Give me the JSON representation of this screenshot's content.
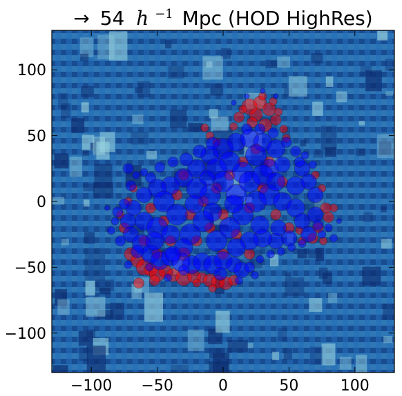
{
  "chart_data": {
    "type": "scatter",
    "title": {
      "arrow": "→",
      "number": "54",
      "h_base": "h",
      "h_exp": "−1",
      "rest": "Mpc (HOD HighRes)"
    },
    "xlabel": "",
    "ylabel": "",
    "xlim": [
      -130,
      130
    ],
    "ylim": [
      -130,
      130
    ],
    "xticks": [
      -100,
      -50,
      0,
      50,
      100
    ],
    "yticks": [
      -100,
      -50,
      0,
      50,
      100
    ],
    "xtick_labels": [
      "−100",
      "−50",
      "0",
      "50",
      "100"
    ],
    "ytick_labels": [
      "−100",
      "−50",
      "0",
      "50",
      "100"
    ],
    "grid": false,
    "legend": "none",
    "background": "blue density field (heatmap)",
    "colors": {
      "density_low": "#0d2b6e",
      "density_mid": "#2f7fc1",
      "density_high": "#9ad3de",
      "series_red": "#ff0000",
      "series_blue": "#0000ff"
    },
    "series": [
      {
        "color": "#ff0000",
        "points": [
          [
            20,
            72,
            6
          ],
          [
            28,
            75,
            5
          ],
          [
            35,
            70,
            5
          ],
          [
            25,
            66,
            5
          ],
          [
            12,
            64,
            4
          ],
          [
            40,
            62,
            4
          ],
          [
            32,
            58,
            5
          ],
          [
            22,
            60,
            4
          ],
          [
            38,
            76,
            3
          ],
          [
            15,
            70,
            3
          ],
          [
            30,
            80,
            3
          ],
          [
            42,
            68,
            3
          ],
          [
            8,
            57,
            3
          ],
          [
            -10,
            50,
            3
          ],
          [
            -14,
            56,
            3
          ],
          [
            -5,
            45,
            3
          ],
          [
            46,
            55,
            3
          ],
          [
            48,
            48,
            3
          ],
          [
            -70,
            -40,
            5
          ],
          [
            -65,
            -45,
            5
          ],
          [
            -60,
            -50,
            6
          ],
          [
            -55,
            -52,
            5
          ],
          [
            -50,
            -55,
            6
          ],
          [
            -44,
            -53,
            5
          ],
          [
            -38,
            -56,
            5
          ],
          [
            -30,
            -58,
            6
          ],
          [
            -22,
            -57,
            5
          ],
          [
            -16,
            -58,
            4
          ],
          [
            -10,
            -60,
            5
          ],
          [
            -4,
            -61,
            5
          ],
          [
            2,
            -62,
            5
          ],
          [
            8,
            -60,
            4
          ],
          [
            -64,
            -62,
            4
          ],
          [
            -52,
            -60,
            4
          ],
          [
            -20,
            -62,
            3
          ],
          [
            -8,
            -66,
            3
          ],
          [
            75,
            10,
            3
          ],
          [
            78,
            -5,
            4
          ],
          [
            80,
            -12,
            4
          ],
          [
            72,
            -20,
            4
          ],
          [
            68,
            -28,
            4
          ],
          [
            60,
            -30,
            3
          ],
          [
            76,
            -30,
            3
          ],
          [
            84,
            -5,
            3
          ],
          [
            70,
            20,
            3
          ],
          [
            58,
            -22,
            3
          ],
          [
            -75,
            -20,
            4
          ],
          [
            -78,
            -10,
            3
          ],
          [
            -72,
            0,
            3
          ],
          [
            -68,
            10,
            3
          ],
          [
            -60,
            -30,
            4
          ],
          [
            -50,
            -40,
            4
          ],
          [
            -40,
            -30,
            4
          ],
          [
            -30,
            -40,
            5
          ],
          [
            -20,
            -30,
            4
          ],
          [
            -10,
            -20,
            4
          ],
          [
            0,
            -10,
            4
          ],
          [
            10,
            -25,
            4
          ],
          [
            20,
            -5,
            4
          ],
          [
            30,
            10,
            4
          ],
          [
            40,
            -10,
            4
          ],
          [
            50,
            -20,
            4
          ],
          [
            45,
            15,
            4
          ],
          [
            35,
            30,
            4
          ],
          [
            25,
            40,
            4
          ],
          [
            15,
            30,
            4
          ],
          [
            5,
            20,
            4
          ],
          [
            -5,
            10,
            4
          ],
          [
            -15,
            0,
            4
          ],
          [
            -25,
            -10,
            4
          ],
          [
            -35,
            5,
            4
          ],
          [
            -45,
            -15,
            4
          ],
          [
            -55,
            -5,
            4
          ],
          [
            0,
            -40,
            4
          ],
          [
            20,
            -40,
            4
          ],
          [
            -30,
            20,
            4
          ]
        ]
      },
      {
        "color": "#0000ff",
        "points": [
          [
            0,
            40,
            8
          ],
          [
            10,
            45,
            7
          ],
          [
            20,
            48,
            7
          ],
          [
            30,
            45,
            7
          ],
          [
            -10,
            35,
            7
          ],
          [
            40,
            40,
            7
          ],
          [
            25,
            35,
            8
          ],
          [
            5,
            30,
            8
          ],
          [
            -5,
            25,
            8
          ],
          [
            15,
            22,
            8
          ],
          [
            35,
            25,
            7
          ],
          [
            45,
            28,
            6
          ],
          [
            -20,
            25,
            7
          ],
          [
            -30,
            18,
            7
          ],
          [
            -40,
            12,
            7
          ],
          [
            -50,
            10,
            7
          ],
          [
            -60,
            5,
            6
          ],
          [
            -68,
            -5,
            6
          ],
          [
            -72,
            -15,
            6
          ],
          [
            -70,
            -25,
            6
          ],
          [
            -62,
            -32,
            7
          ],
          [
            -55,
            -40,
            7
          ],
          [
            -48,
            -45,
            7
          ],
          [
            -40,
            -42,
            7
          ],
          [
            -32,
            -46,
            7
          ],
          [
            -24,
            -48,
            7
          ],
          [
            -16,
            -46,
            7
          ],
          [
            -8,
            -48,
            7
          ],
          [
            0,
            -45,
            7
          ],
          [
            8,
            -48,
            6
          ],
          [
            14,
            -52,
            6
          ],
          [
            -2,
            -55,
            5
          ],
          [
            -60,
            -15,
            7
          ],
          [
            -50,
            -20,
            8
          ],
          [
            -45,
            0,
            8
          ],
          [
            -35,
            -10,
            8
          ],
          [
            -25,
            -25,
            8
          ],
          [
            -15,
            -15,
            8
          ],
          [
            -5,
            -30,
            8
          ],
          [
            5,
            -20,
            8
          ],
          [
            15,
            -10,
            8
          ],
          [
            25,
            0,
            8
          ],
          [
            35,
            5,
            8
          ],
          [
            45,
            0,
            7
          ],
          [
            55,
            -5,
            7
          ],
          [
            60,
            -15,
            6
          ],
          [
            65,
            -25,
            6
          ],
          [
            50,
            -28,
            6
          ],
          [
            40,
            -30,
            6
          ],
          [
            30,
            -28,
            7
          ],
          [
            20,
            -30,
            7
          ],
          [
            10,
            -35,
            7
          ],
          [
            -10,
            5,
            8
          ],
          [
            -20,
            10,
            8
          ],
          [
            0,
            15,
            8
          ],
          [
            10,
            5,
            8
          ],
          [
            20,
            15,
            8
          ],
          [
            30,
            20,
            8
          ],
          [
            40,
            15,
            7
          ],
          [
            55,
            12,
            7
          ],
          [
            60,
            25,
            6
          ],
          [
            65,
            15,
            6
          ],
          [
            70,
            5,
            6
          ],
          [
            70,
            -10,
            6
          ],
          [
            -30,
            -35,
            7
          ],
          [
            -40,
            -25,
            7
          ],
          [
            -52,
            -30,
            7
          ],
          [
            -65,
            -38,
            5
          ],
          [
            -75,
            -2,
            4
          ],
          [
            -80,
            -8,
            4
          ],
          [
            -82,
            -15,
            3
          ],
          [
            -88,
            -5,
            2
          ],
          [
            -85,
            -22,
            3
          ],
          [
            -78,
            -30,
            4
          ],
          [
            -70,
            12,
            4
          ],
          [
            -66,
            20,
            3
          ],
          [
            -72,
            25,
            4
          ],
          [
            -60,
            22,
            3
          ],
          [
            -55,
            18,
            4
          ],
          [
            -48,
            26,
            4
          ],
          [
            -38,
            30,
            4
          ],
          [
            -28,
            32,
            5
          ],
          [
            -18,
            38,
            5
          ],
          [
            -8,
            44,
            5
          ],
          [
            18,
            55,
            4
          ],
          [
            28,
            55,
            4
          ],
          [
            38,
            52,
            4
          ],
          [
            48,
            45,
            4
          ],
          [
            55,
            38,
            4
          ],
          [
            58,
            30,
            4
          ],
          [
            62,
            35,
            3
          ],
          [
            68,
            28,
            3
          ],
          [
            72,
            -18,
            4
          ],
          [
            75,
            -25,
            3
          ],
          [
            80,
            -20,
            3
          ],
          [
            84,
            -28,
            3
          ],
          [
            88,
            -15,
            2
          ],
          [
            60,
            -32,
            3
          ],
          [
            52,
            -35,
            3
          ],
          [
            44,
            -38,
            3
          ],
          [
            36,
            -40,
            3
          ],
          [
            28,
            -44,
            3
          ],
          [
            20,
            -50,
            4
          ],
          [
            24,
            -56,
            3
          ],
          [
            12,
            -60,
            3
          ],
          [
            -30,
            -52,
            4
          ],
          [
            -42,
            -58,
            3
          ],
          [
            -56,
            -50,
            3
          ],
          [
            -72,
            -48,
            3
          ],
          [
            18,
            80,
            2
          ],
          [
            30,
            84,
            2
          ],
          [
            40,
            80,
            2
          ],
          [
            8,
            75,
            2
          ],
          [
            -12,
            18,
            6
          ],
          [
            8,
            -2,
            7
          ],
          [
            -22,
            -2,
            7
          ],
          [
            28,
            -18,
            7
          ],
          [
            -38,
            -40,
            6
          ],
          [
            42,
            -20,
            6
          ],
          [
            -8,
            -8,
            7
          ]
        ]
      }
    ]
  }
}
